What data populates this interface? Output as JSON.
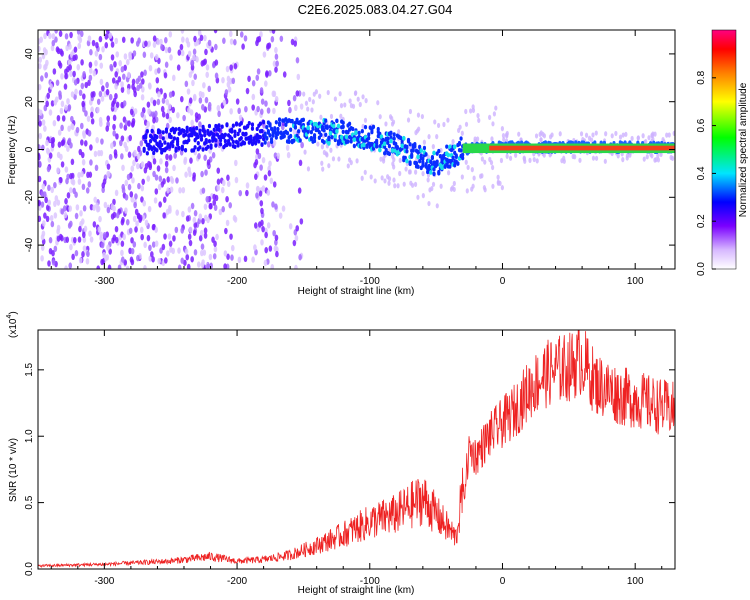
{
  "title": "C2E6.2025.083.04.27.G04",
  "chart_data": [
    {
      "type": "heatmap",
      "xlabel": "Height of straight line (km)",
      "ylabel": "Frequency (Hz)",
      "xlim": [
        -350,
        130
      ],
      "ylim": [
        -50,
        50
      ],
      "x_ticks": [
        -300,
        -200,
        -100,
        0,
        100
      ],
      "y_ticks": [
        -40,
        -20,
        0,
        20,
        40
      ],
      "colorbar": {
        "label": "Normalized spectral amplitude",
        "range": [
          0.0,
          1.0
        ],
        "ticks": [
          "0.0",
          "0.2",
          "0.4",
          "0.6",
          "0.8"
        ],
        "colors": [
          "#ffffff",
          "#c9a8ff",
          "#7a00ff",
          "#0000ff",
          "#00e5ff",
          "#00ff00",
          "#ffff00",
          "#ff7f00",
          "#ff0000",
          "#ff0080"
        ]
      },
      "ridge": {
        "x": [
          -280,
          -240,
          -200,
          -160,
          -120,
          -100,
          -80,
          -60,
          -50,
          -40,
          -30,
          -20,
          0,
          50,
          100,
          130
        ],
        "y": [
          3,
          4,
          6,
          8,
          7,
          5,
          2,
          -4,
          -6,
          -3,
          0,
          1,
          1,
          1,
          1,
          1
        ]
      }
    },
    {
      "type": "line",
      "xlabel": "Height of straight line (km)",
      "ylabel": "SNR (10 * v/v)",
      "y_multiplier": "(x10",
      "y_multiplier_exp": "4",
      "xlim": [
        -350,
        130
      ],
      "ylim": [
        0,
        18000
      ],
      "x_ticks": [
        -300,
        -200,
        -100,
        0,
        100
      ],
      "y_ticks": [
        0,
        5000,
        10000,
        15000
      ],
      "y_tick_labels": [
        "0.0",
        "0.5",
        "1.0",
        "1.5"
      ],
      "series": [
        {
          "color": "#ee2222",
          "x": [
            -350,
            -300,
            -250,
            -220,
            -200,
            -180,
            -160,
            -140,
            -120,
            -100,
            -80,
            -60,
            -45,
            -35,
            -30,
            -25,
            -20,
            -10,
            0,
            10,
            20,
            30,
            40,
            50,
            60,
            70,
            80,
            90,
            100,
            110,
            120,
            130
          ],
          "y": [
            200,
            300,
            500,
            800,
            500,
            600,
            900,
            1500,
            2200,
            3000,
            3500,
            4500,
            3000,
            2000,
            5000,
            9000,
            8500,
            10000,
            11000,
            12000,
            13500,
            14500,
            15000,
            15200,
            15800,
            14000,
            13500,
            13000,
            12800,
            12500,
            12200,
            12000
          ]
        }
      ]
    }
  ]
}
